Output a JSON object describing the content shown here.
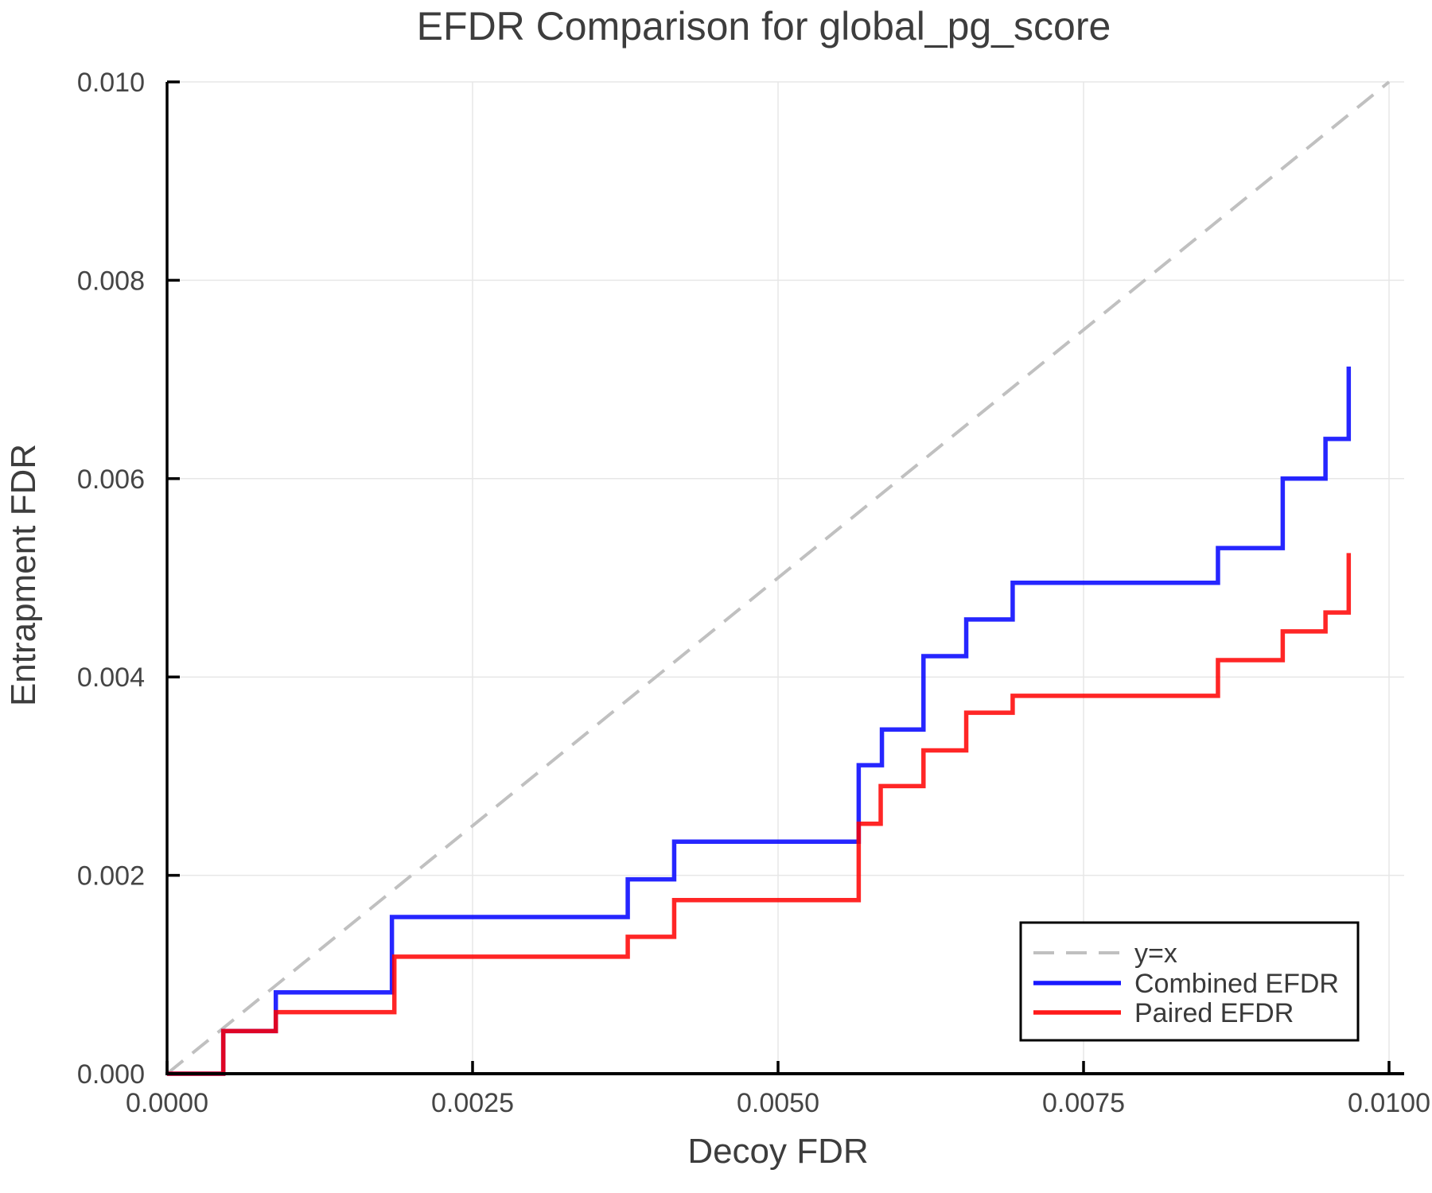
{
  "chart_data": {
    "type": "line",
    "title": "EFDR Comparison for global_pg_score",
    "xlabel": "Decoy FDR",
    "ylabel": "Entrapment FDR",
    "xlim": [
      0.0,
      0.01
    ],
    "ylim": [
      0.0,
      0.01
    ],
    "x_tick_values": [
      0.0,
      0.0025,
      0.005,
      0.0075,
      0.01
    ],
    "x_tick_labels": [
      "0.0000",
      "0.0025",
      "0.0050",
      "0.0075",
      "0.0100"
    ],
    "y_tick_values": [
      0.0,
      0.002,
      0.004,
      0.006,
      0.008,
      0.01
    ],
    "y_tick_labels": [
      "0.000",
      "0.002",
      "0.004",
      "0.006",
      "0.008",
      "0.010"
    ],
    "grid": true,
    "legend_position": "lower right",
    "colors": {
      "identity_line": "#c0c0c0",
      "combined": "#0000ff",
      "paired": "#ff0000",
      "grid": "#e7e7e7",
      "spine": "#000000",
      "text": "#3d3d3d",
      "tick_text": "#454545"
    },
    "series": [
      {
        "name": "y=x",
        "kind": "identity",
        "style": "dashed",
        "color_key": "identity_line",
        "x": [
          0.0,
          0.01
        ],
        "y": [
          0.0,
          0.01
        ]
      },
      {
        "name": "Combined EFDR",
        "kind": "step",
        "style": "solid",
        "color_key": "combined",
        "x": [
          0.0,
          0.00046,
          0.00089,
          0.00184,
          0.00377,
          0.00415,
          0.00566,
          0.00585,
          0.00619,
          0.00654,
          0.00692,
          0.0086,
          0.00913,
          0.00948,
          0.00967
        ],
        "y": [
          0.0,
          0.00043,
          0.00082,
          0.00158,
          0.00196,
          0.00234,
          0.00311,
          0.00347,
          0.00421,
          0.00458,
          0.00495,
          0.0053,
          0.006,
          0.0064,
          0.00713
        ]
      },
      {
        "name": "Paired EFDR",
        "kind": "step",
        "style": "solid",
        "color_key": "paired",
        "x": [
          0.0,
          0.00046,
          0.00089,
          0.00186,
          0.00377,
          0.00415,
          0.00566,
          0.00584,
          0.00619,
          0.00654,
          0.00692,
          0.0086,
          0.00913,
          0.00948,
          0.00967
        ],
        "y": [
          0.0,
          0.00043,
          0.00062,
          0.00118,
          0.00138,
          0.00175,
          0.00252,
          0.0029,
          0.00326,
          0.00364,
          0.00381,
          0.00417,
          0.00446,
          0.00465,
          0.00525
        ]
      }
    ],
    "legend_entries": [
      "y=x",
      "Combined EFDR",
      "Paired EFDR"
    ]
  }
}
